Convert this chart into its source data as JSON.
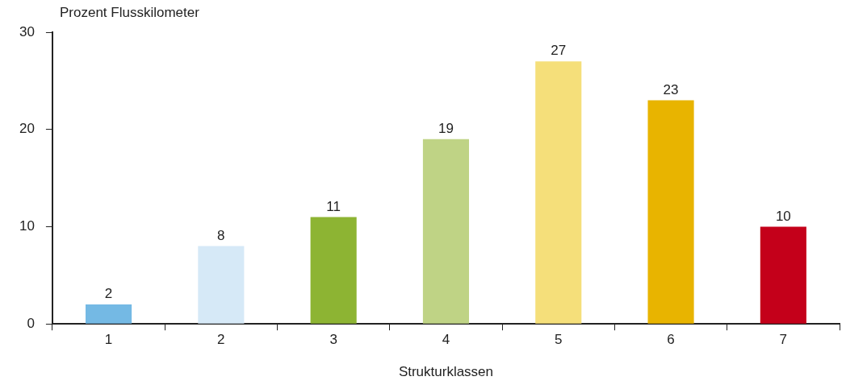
{
  "chart_data": {
    "type": "bar",
    "ylabel": "Prozent Flusskilometer",
    "xlabel": "Strukturklassen",
    "categories": [
      "1",
      "2",
      "3",
      "4",
      "5",
      "6",
      "7"
    ],
    "values": [
      2,
      8,
      11,
      19,
      27,
      23,
      10
    ],
    "colors": [
      "#74b9e4",
      "#d6e9f7",
      "#8db433",
      "#bfd385",
      "#f5df7a",
      "#e8b400",
      "#c4001a"
    ],
    "ylim": [
      0,
      30
    ],
    "yticks": [
      0,
      10,
      20,
      30
    ],
    "data_labels": true
  }
}
